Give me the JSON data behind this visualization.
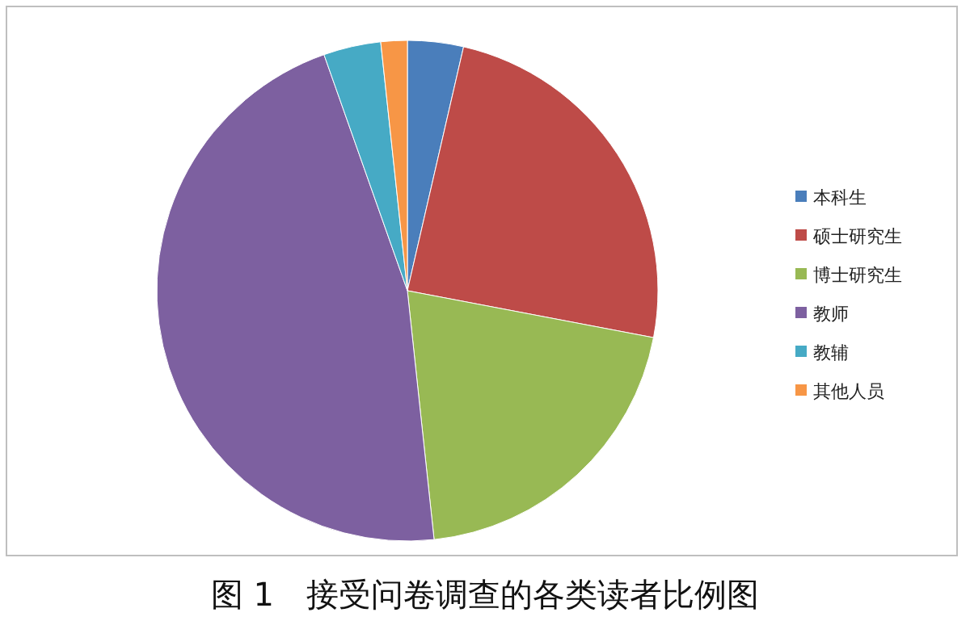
{
  "chart_data": {
    "type": "pie",
    "title": "图 1　接受问卷调查的各类读者比例图",
    "categories": [
      "本科生",
      "硕士研究生",
      "博士研究生",
      "教师",
      "教辅",
      "其他人员"
    ],
    "values": [
      3.6,
      24.4,
      20.3,
      46.3,
      3.7,
      1.7
    ],
    "colors": [
      "#4a7ebb",
      "#be4b48",
      "#98b954",
      "#7d60a0",
      "#46aac5",
      "#f79646"
    ],
    "legend": "right"
  }
}
